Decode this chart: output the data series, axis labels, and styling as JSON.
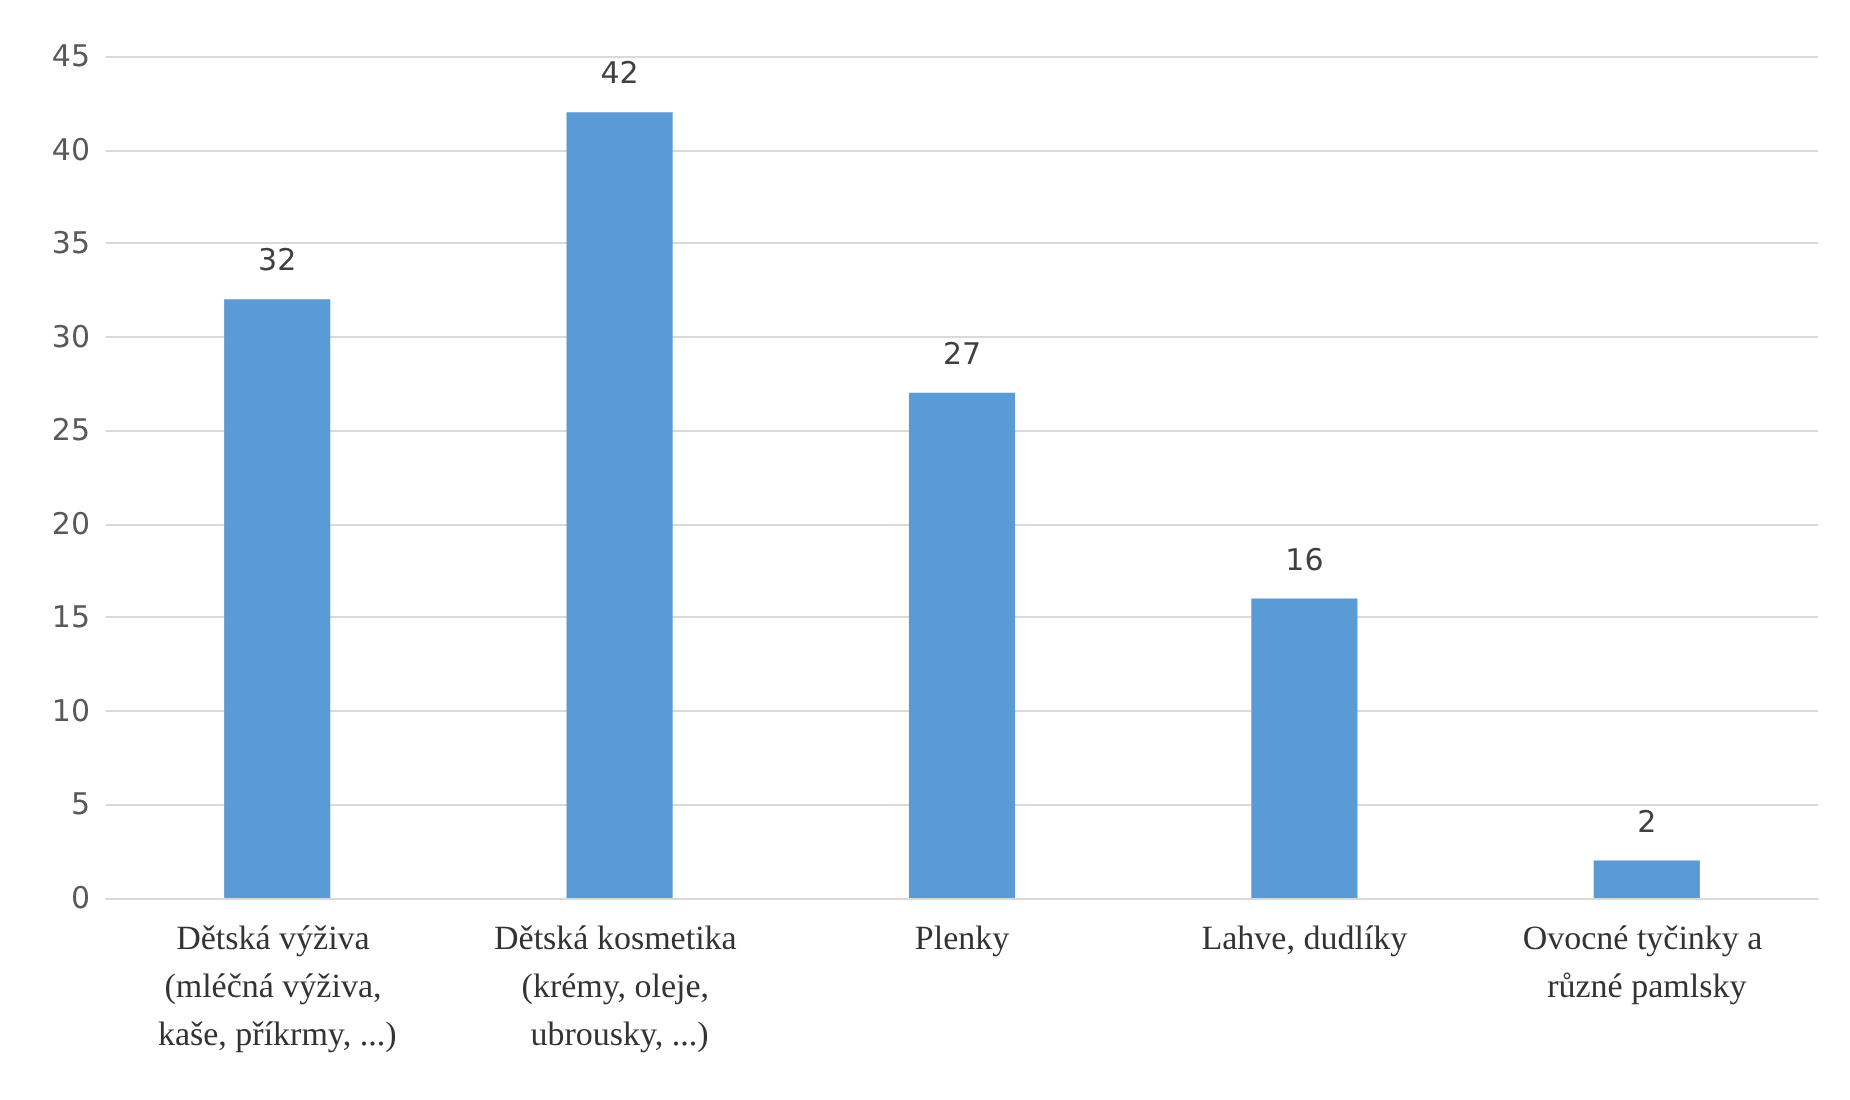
{
  "chart_data": {
    "type": "bar",
    "categories": [
      "Dětská výživa (mléčná výživa, kaše, příkrmy, ...)",
      "Dětská kosmetika (krémy, oleje, ubrousky, ...)",
      "Plenky",
      "Lahve, dudlíky",
      "Ovocné tyčinky a různé pamlsky"
    ],
    "values": [
      32,
      42,
      27,
      16,
      2
    ],
    "color": "#5b9bd5",
    "ylim": [
      0,
      45
    ],
    "yticks": [
      0,
      5,
      10,
      15,
      20,
      25,
      30,
      35,
      40,
      45
    ],
    "grid": "y",
    "data_labels": true
  }
}
